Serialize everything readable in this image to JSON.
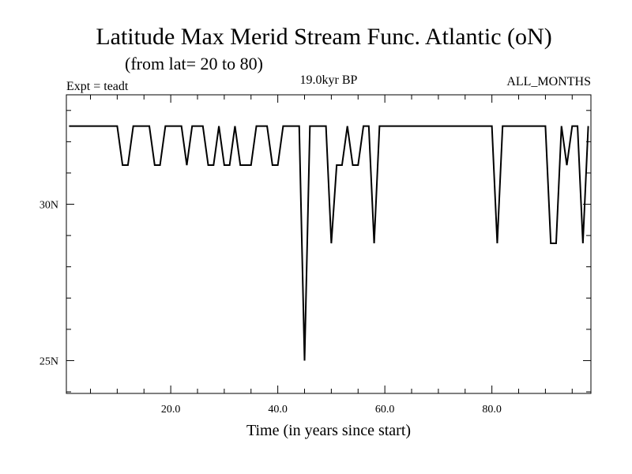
{
  "chart_data": {
    "type": "line",
    "title": "Latitude Max Merid Stream Func. Atlantic (oN)",
    "subtitle": "(from lat= 20 to 80)",
    "experiment": "Expt = teadt",
    "period": "19.0kyr BP",
    "months": "ALL_MONTHS",
    "xlabel": "Time (in years since start)",
    "ylabel": "",
    "xlim": [
      0.5,
      98.5
    ],
    "ylim": [
      23.95,
      33.5
    ],
    "xticks": [
      {
        "value": 20,
        "label": "20.0"
      },
      {
        "value": 40,
        "label": "40.0"
      },
      {
        "value": 60,
        "label": "60.0"
      },
      {
        "value": 80,
        "label": "80.0"
      }
    ],
    "yticks": [
      {
        "value": 25,
        "label": "25N"
      },
      {
        "value": 30,
        "label": "30N"
      }
    ],
    "grid": false,
    "legend": "none",
    "line_color": "#000000",
    "series": [
      {
        "x": [
          1,
          2,
          3,
          4,
          5,
          6,
          7,
          8,
          9,
          10,
          11,
          12,
          13,
          14,
          15,
          16,
          17,
          18,
          19,
          20,
          21,
          22,
          23,
          24,
          25,
          26,
          27,
          28,
          29,
          30,
          31,
          32,
          33,
          34,
          35,
          36,
          37,
          38,
          39,
          40,
          41,
          42,
          43,
          44,
          45,
          46,
          47,
          48,
          49,
          50,
          51,
          52,
          53,
          54,
          55,
          56,
          57,
          58,
          59,
          60,
          61,
          62,
          63,
          64,
          65,
          66,
          67,
          68,
          69,
          70,
          71,
          72,
          73,
          74,
          75,
          76,
          77,
          78,
          79,
          80,
          81,
          82,
          83,
          84,
          85,
          86,
          87,
          88,
          89,
          90,
          91,
          92,
          93,
          94,
          95,
          96,
          97,
          98
        ],
        "values": [
          32.5,
          32.5,
          32.5,
          32.5,
          32.5,
          32.5,
          32.5,
          32.5,
          32.5,
          32.5,
          31.25,
          31.25,
          32.5,
          32.5,
          32.5,
          32.5,
          31.25,
          31.25,
          32.5,
          32.5,
          32.5,
          32.5,
          31.25,
          32.5,
          32.5,
          32.5,
          31.25,
          31.25,
          32.5,
          31.25,
          31.25,
          32.5,
          31.25,
          31.25,
          31.25,
          32.5,
          32.5,
          32.5,
          31.25,
          31.25,
          32.5,
          32.5,
          32.5,
          32.5,
          25,
          32.5,
          32.5,
          32.5,
          32.5,
          28.75,
          31.25,
          31.25,
          32.5,
          31.25,
          31.25,
          32.5,
          32.5,
          28.75,
          32.5,
          32.5,
          32.5,
          32.5,
          32.5,
          32.5,
          32.5,
          32.5,
          32.5,
          32.5,
          32.5,
          32.5,
          32.5,
          32.5,
          32.5,
          32.5,
          32.5,
          32.5,
          32.5,
          32.5,
          32.5,
          32.5,
          28.75,
          32.5,
          32.5,
          32.5,
          32.5,
          32.5,
          32.5,
          32.5,
          32.5,
          32.5,
          28.75,
          28.75,
          32.5,
          31.25,
          32.5,
          32.5,
          28.75,
          32.5
        ]
      }
    ]
  }
}
